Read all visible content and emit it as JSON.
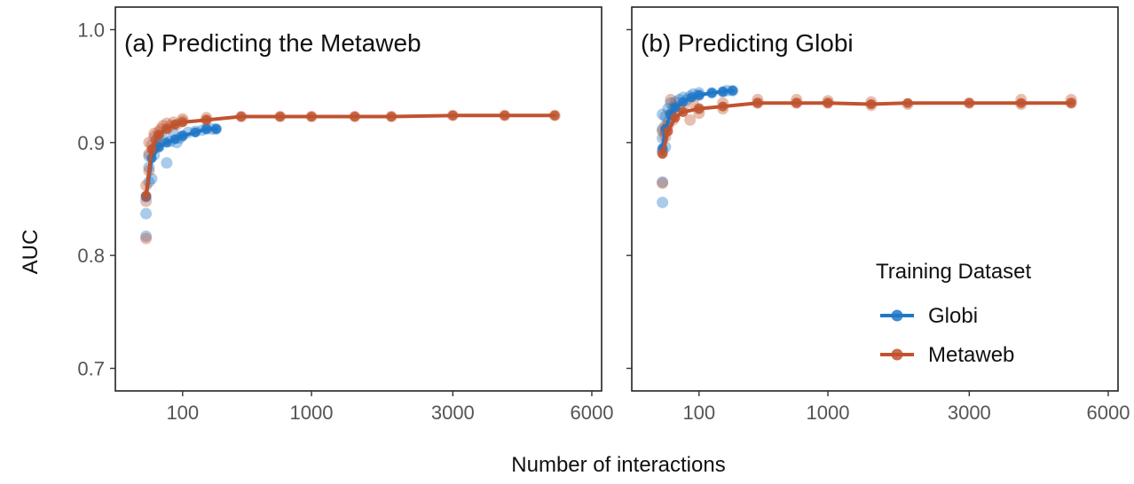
{
  "chart_data": {
    "type": "scatter",
    "xlabel": "Number of interactions",
    "ylabel": "AUC",
    "ylim": [
      0.68,
      1.02
    ],
    "xlim": [
      -20,
      6250
    ],
    "x_ticks": [
      100,
      1000,
      3000,
      6000
    ],
    "y_ticks": [
      0.7,
      0.8,
      0.9,
      1.0
    ],
    "y_tick_labels": [
      "0.7",
      "0.8",
      "0.9",
      "1.0"
    ],
    "x_axis_note": "square-root style axis",
    "grid": false,
    "legend": {
      "title": "Training Dataset",
      "placement": "bottom-right of panel (b)",
      "entries": [
        {
          "name": "Globi",
          "color": "#1f77c8"
        },
        {
          "name": "Metaweb",
          "color": "#c0532f"
        }
      ]
    },
    "panels": [
      {
        "title": "(a) Predicting the Metaweb",
        "series": [
          {
            "name": "Globi",
            "color": "#1f77c8",
            "points": [
              [
                5,
                0.817
              ],
              [
                5,
                0.837
              ],
              [
                5,
                0.852
              ],
              [
                10,
                0.865
              ],
              [
                10,
                0.878
              ],
              [
                10,
                0.888
              ],
              [
                15,
                0.868
              ],
              [
                20,
                0.889
              ],
              [
                20,
                0.895
              ],
              [
                25,
                0.902
              ],
              [
                30,
                0.896
              ],
              [
                30,
                0.905
              ],
              [
                40,
                0.903
              ],
              [
                50,
                0.882
              ],
              [
                60,
                0.901
              ],
              [
                70,
                0.908
              ],
              [
                80,
                0.9
              ],
              [
                90,
                0.904
              ],
              [
                100,
                0.906
              ],
              [
                120,
                0.909
              ],
              [
                150,
                0.91
              ],
              [
                180,
                0.911
              ],
              [
                200,
                0.912
              ],
              [
                230,
                0.912
              ],
              [
                250,
                0.912
              ]
            ],
            "line": [
              [
                5,
                0.852
              ],
              [
                15,
                0.886
              ],
              [
                30,
                0.896
              ],
              [
                50,
                0.9
              ],
              [
                75,
                0.903
              ],
              [
                100,
                0.906
              ],
              [
                150,
                0.909
              ],
              [
                200,
                0.912
              ],
              [
                250,
                0.912
              ]
            ]
          },
          {
            "name": "Metaweb",
            "color": "#c0532f",
            "points": [
              [
                5,
                0.815
              ],
              [
                5,
                0.848
              ],
              [
                5,
                0.862
              ],
              [
                10,
                0.875
              ],
              [
                10,
                0.89
              ],
              [
                10,
                0.9
              ],
              [
                15,
                0.898
              ],
              [
                20,
                0.905
              ],
              [
                20,
                0.908
              ],
              [
                25,
                0.903
              ],
              [
                30,
                0.91
              ],
              [
                35,
                0.912
              ],
              [
                40,
                0.915
              ],
              [
                50,
                0.912
              ],
              [
                50,
                0.917
              ],
              [
                60,
                0.915
              ],
              [
                70,
                0.918
              ],
              [
                80,
                0.916
              ],
              [
                100,
                0.919
              ],
              [
                100,
                0.921
              ],
              [
                200,
                0.92
              ],
              [
                200,
                0.922
              ],
              [
                400,
                0.923
              ],
              [
                700,
                0.923
              ],
              [
                1000,
                0.923
              ],
              [
                1500,
                0.923
              ],
              [
                2000,
                0.923
              ],
              [
                3000,
                0.924
              ],
              [
                4000,
                0.924
              ],
              [
                5100,
                0.924
              ]
            ],
            "line": [
              [
                5,
                0.853
              ],
              [
                15,
                0.894
              ],
              [
                30,
                0.907
              ],
              [
                50,
                0.912
              ],
              [
                75,
                0.916
              ],
              [
                100,
                0.918
              ],
              [
                200,
                0.92
              ],
              [
                400,
                0.923
              ],
              [
                700,
                0.923
              ],
              [
                1000,
                0.923
              ],
              [
                1500,
                0.923
              ],
              [
                2000,
                0.923
              ],
              [
                3000,
                0.924
              ],
              [
                4000,
                0.924
              ],
              [
                5100,
                0.924
              ]
            ]
          }
        ]
      },
      {
        "title": "(b) Predicting Globi",
        "series": [
          {
            "name": "Globi",
            "color": "#1f77c8",
            "points": [
              [
                5,
                0.847
              ],
              [
                5,
                0.865
              ],
              [
                5,
                0.893
              ],
              [
                5,
                0.904
              ],
              [
                5,
                0.912
              ],
              [
                5,
                0.925
              ],
              [
                10,
                0.896
              ],
              [
                10,
                0.91
              ],
              [
                10,
                0.923
              ],
              [
                15,
                0.918
              ],
              [
                15,
                0.93
              ],
              [
                20,
                0.925
              ],
              [
                20,
                0.935
              ],
              [
                25,
                0.93
              ],
              [
                30,
                0.932
              ],
              [
                30,
                0.936
              ],
              [
                40,
                0.938
              ],
              [
                50,
                0.94
              ],
              [
                60,
                0.938
              ],
              [
                70,
                0.941
              ],
              [
                80,
                0.943
              ],
              [
                100,
                0.942
              ],
              [
                100,
                0.944
              ],
              [
                150,
                0.944
              ],
              [
                200,
                0.945
              ],
              [
                220,
                0.946
              ],
              [
                250,
                0.946
              ]
            ],
            "line": [
              [
                5,
                0.895
              ],
              [
                10,
                0.912
              ],
              [
                20,
                0.925
              ],
              [
                30,
                0.931
              ],
              [
                50,
                0.936
              ],
              [
                75,
                0.94
              ],
              [
                100,
                0.942
              ],
              [
                150,
                0.944
              ],
              [
                200,
                0.945
              ],
              [
                250,
                0.946
              ]
            ]
          },
          {
            "name": "Metaweb",
            "color": "#c0532f",
            "points": [
              [
                5,
                0.864
              ],
              [
                5,
                0.891
              ],
              [
                5,
                0.91
              ],
              [
                10,
                0.905
              ],
              [
                10,
                0.915
              ],
              [
                15,
                0.915
              ],
              [
                20,
                0.925
              ],
              [
                20,
                0.938
              ],
              [
                25,
                0.92
              ],
              [
                30,
                0.928
              ],
              [
                40,
                0.932
              ],
              [
                50,
                0.93
              ],
              [
                70,
                0.92
              ],
              [
                80,
                0.935
              ],
              [
                100,
                0.93
              ],
              [
                100,
                0.926
              ],
              [
                200,
                0.935
              ],
              [
                200,
                0.93
              ],
              [
                400,
                0.935
              ],
              [
                400,
                0.938
              ],
              [
                700,
                0.935
              ],
              [
                700,
                0.938
              ],
              [
                1000,
                0.935
              ],
              [
                1000,
                0.937
              ],
              [
                1500,
                0.933
              ],
              [
                1500,
                0.936
              ],
              [
                2000,
                0.934
              ],
              [
                3000,
                0.935
              ],
              [
                4000,
                0.934
              ],
              [
                4000,
                0.938
              ],
              [
                5100,
                0.935
              ],
              [
                5100,
                0.938
              ]
            ],
            "line": [
              [
                5,
                0.89
              ],
              [
                15,
                0.91
              ],
              [
                30,
                0.922
              ],
              [
                50,
                0.927
              ],
              [
                100,
                0.93
              ],
              [
                200,
                0.932
              ],
              [
                400,
                0.935
              ],
              [
                700,
                0.935
              ],
              [
                1000,
                0.935
              ],
              [
                1500,
                0.934
              ],
              [
                2000,
                0.935
              ],
              [
                3000,
                0.935
              ],
              [
                4000,
                0.935
              ],
              [
                5100,
                0.935
              ]
            ]
          }
        ]
      }
    ]
  }
}
